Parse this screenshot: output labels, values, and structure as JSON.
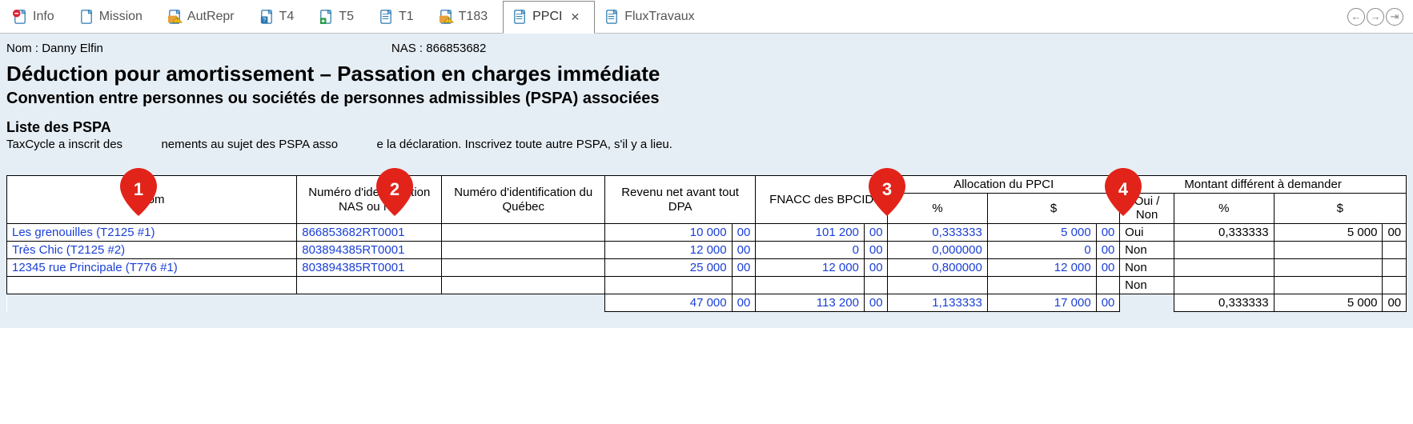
{
  "tabs": [
    {
      "label": "Info",
      "icon": "doc-red-stop"
    },
    {
      "label": "Mission",
      "icon": "doc-blank"
    },
    {
      "label": "AutRepr",
      "icon": "doc-folder-warn"
    },
    {
      "label": "T4",
      "icon": "doc-question"
    },
    {
      "label": "T5",
      "icon": "doc-plus"
    },
    {
      "label": "T1",
      "icon": "doc-lines"
    },
    {
      "label": "T183",
      "icon": "doc-folder-warn"
    },
    {
      "label": "PPCI",
      "icon": "doc-blue",
      "active": true,
      "closable": true
    },
    {
      "label": "FluxTravaux",
      "icon": "doc-lines"
    }
  ],
  "client": {
    "name_label": "Nom : ",
    "name": "Danny Elfin",
    "nas_label": "NAS : ",
    "nas": "866853682"
  },
  "headings": {
    "title": "Déduction pour amortissement – Passation en charges immédiate",
    "subtitle": "Convention entre personnes ou sociétés de personnes admissibles (PSPA) associées",
    "list_head": "Liste des PSPA",
    "list_desc_a": "TaxCycle a inscrit des",
    "list_desc_b": "nements au sujet des PSPA asso",
    "list_desc_c": "e la déclaration. Inscrivez toute autre PSPA, s'il y a lieu."
  },
  "pins": {
    "1": "1",
    "2": "2",
    "3": "3",
    "4": "4",
    "color": "#e2231a"
  },
  "columns": {
    "nom": "Nom",
    "id": "Numéro d'identification NAS ou NE",
    "idq": "Numéro d'identification du Québec",
    "rev": "Revenu net avant tout DPA",
    "fnacc": "FNACC des BPCID",
    "alloc_group": "Allocation du PPCI",
    "alloc_pct": "%",
    "alloc_amt": "$",
    "diff_group": "Montant différent à demander",
    "diff_oui": "Oui / Non",
    "diff_pct": "%",
    "diff_amt": "$"
  },
  "rows": [
    {
      "nom": "Les grenouilles (T2125 #1)",
      "id": "866853682RT0001",
      "idq": "",
      "rev_int": "10 000",
      "rev_c": "00",
      "fnacc_int": "101 200",
      "fnacc_c": "00",
      "alloc_pct": "0,333333",
      "alloc_int": "5 000",
      "alloc_c": "00",
      "oui": "Oui",
      "diff_pct": "0,333333",
      "diff_int": "5 000",
      "diff_c": "00"
    },
    {
      "nom": "Très Chic (T2125 #2)",
      "id": "803894385RT0001",
      "idq": "",
      "rev_int": "12 000",
      "rev_c": "00",
      "fnacc_int": "0",
      "fnacc_c": "00",
      "alloc_pct": "0,000000",
      "alloc_int": "0",
      "alloc_c": "00",
      "oui": "Non",
      "diff_pct": "",
      "diff_int": "",
      "diff_c": ""
    },
    {
      "nom": "12345 rue Principale (T776 #1)",
      "id": "803894385RT0001",
      "idq": "",
      "rev_int": "25 000",
      "rev_c": "00",
      "fnacc_int": "12 000",
      "fnacc_c": "00",
      "alloc_pct": "0,800000",
      "alloc_int": "12 000",
      "alloc_c": "00",
      "oui": "Non",
      "diff_pct": "",
      "diff_int": "",
      "diff_c": ""
    },
    {
      "nom": "",
      "id": "",
      "idq": "",
      "rev_int": "",
      "rev_c": "",
      "fnacc_int": "",
      "fnacc_c": "",
      "alloc_pct": "",
      "alloc_int": "",
      "alloc_c": "",
      "oui": "Non",
      "diff_pct": "",
      "diff_int": "",
      "diff_c": ""
    }
  ],
  "totals": {
    "rev_int": "47 000",
    "rev_c": "00",
    "fnacc_int": "113 200",
    "fnacc_c": "00",
    "alloc_pct": "1,133333",
    "alloc_int": "17 000",
    "alloc_c": "00",
    "diff_pct": "0,333333",
    "diff_int": "5 000",
    "diff_c": "00"
  }
}
